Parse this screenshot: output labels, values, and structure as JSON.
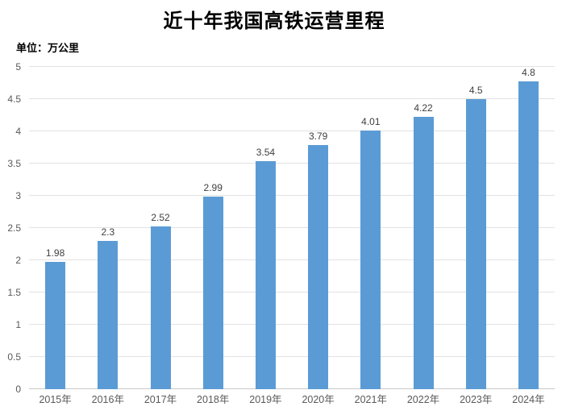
{
  "chart": {
    "title": "近十年我国高铁运营里程",
    "unit_label": "单位：万公里"
  },
  "chart_data": {
    "type": "bar",
    "title": "近十年我国高铁运营里程",
    "unit": "万公里",
    "categories": [
      "2015年",
      "2016年",
      "2017年",
      "2018年",
      "2019年",
      "2020年",
      "2021年",
      "2022年",
      "2023年",
      "2024年"
    ],
    "values": [
      1.98,
      2.3,
      2.52,
      2.99,
      3.54,
      3.79,
      4.01,
      4.22,
      4.5,
      4.8
    ],
    "value_labels": [
      "1.98",
      "2.3",
      "2.52",
      "2.99",
      "3.54",
      "3.79",
      "4.01",
      "4.22",
      "4.5",
      "4.8"
    ],
    "xlabel": "",
    "ylabel": "",
    "ylim": [
      0,
      5
    ],
    "yticks": [
      "0",
      "0.5",
      "1",
      "1.5",
      "2",
      "2.5",
      "3",
      "3.5",
      "4",
      "4.5",
      "5"
    ],
    "grid": true,
    "legend": "none",
    "colors": {
      "bar": "#5b9bd5",
      "gridline": "#e2e2e2",
      "axis_line": "#c9c9c9",
      "tick_label": "#595959",
      "data_label": "#3f3f3f",
      "title": "#000000"
    }
  }
}
